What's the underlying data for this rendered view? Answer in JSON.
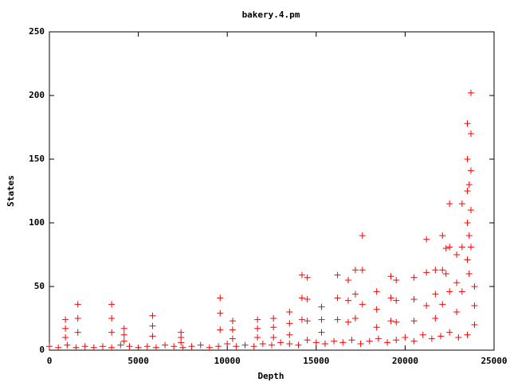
{
  "chart_data": {
    "type": "scatter",
    "title": "bakery.4.pm",
    "x_label": "Depth",
    "y_label": "States",
    "xlim": [
      0,
      25000
    ],
    "ylim": [
      0,
      250
    ],
    "xticks": [
      0,
      5000,
      10000,
      15000,
      20000,
      25000
    ],
    "yticks": [
      0,
      50,
      100,
      150,
      200,
      250
    ],
    "series": [
      {
        "color": "#ff0000",
        "x": [
          0,
          500,
          1000,
          1500,
          2000,
          2500,
          3000,
          3500,
          4000,
          4500,
          5000,
          5500,
          6000,
          6500,
          7000,
          7500,
          8000,
          8500,
          9000,
          9500,
          10000,
          10500,
          11000,
          11500,
          12000,
          12500,
          13000,
          13500,
          14000,
          14500,
          15000,
          15500,
          16000,
          16500,
          17000,
          17500,
          18000,
          18500,
          19000,
          19500,
          20000,
          20500,
          21000,
          21500,
          22000,
          22500,
          23000,
          23500,
          900,
          900,
          900,
          1600,
          1600,
          1600,
          3500,
          3500,
          3500,
          4200,
          4200,
          4200,
          5800,
          5800,
          5800,
          7400,
          7400,
          7400,
          9600,
          9600,
          9600,
          10300,
          10300,
          10300,
          11700,
          11700,
          11700,
          12600,
          12600,
          12600,
          13500,
          13500,
          13500,
          14200,
          14200,
          14200,
          14500,
          14500,
          14500,
          15300,
          15300,
          15300,
          16200,
          16200,
          16200,
          16800,
          16800,
          16800,
          17200,
          17200,
          17200,
          17600,
          17600,
          17600,
          18400,
          18400,
          18400,
          19200,
          19200,
          19200,
          19500,
          19500,
          19500,
          20500,
          20500,
          20500,
          21200,
          21200,
          21200,
          21700,
          21700,
          21700,
          22100,
          22100,
          22100,
          22500,
          22500,
          22500,
          22900,
          22900,
          22900,
          23200,
          23200,
          23200,
          23500,
          23500,
          23500,
          23700,
          23700,
          23700,
          23900,
          23900,
          23900,
          23500,
          23500,
          23700,
          23700,
          23600,
          23600,
          23600,
          22300,
          22300
        ],
        "values": [
          3,
          2,
          4,
          2,
          3,
          2,
          3,
          2,
          4,
          3,
          2,
          3,
          2,
          4,
          3,
          2,
          3,
          4,
          2,
          3,
          5,
          3,
          4,
          3,
          5,
          4,
          6,
          5,
          4,
          8,
          6,
          5,
          7,
          6,
          8,
          5,
          7,
          9,
          6,
          8,
          10,
          7,
          12,
          9,
          11,
          14,
          10,
          12,
          24,
          17,
          10,
          36,
          25,
          14,
          36,
          25,
          14,
          17,
          12,
          7,
          27,
          19,
          11,
          14,
          10,
          6,
          41,
          29,
          16,
          23,
          16,
          9,
          24,
          17,
          10,
          25,
          18,
          10,
          30,
          21,
          12,
          59,
          41,
          24,
          57,
          40,
          23,
          34,
          24,
          14,
          59,
          41,
          24,
          55,
          39,
          22,
          63,
          44,
          25,
          90,
          63,
          36,
          46,
          32,
          18,
          58,
          41,
          23,
          55,
          39,
          22,
          57,
          40,
          23,
          87,
          61,
          35,
          63,
          44,
          25,
          90,
          63,
          36,
          115,
          81,
          46,
          75,
          53,
          30,
          115,
          81,
          46,
          178,
          125,
          71,
          202,
          141,
          81,
          50,
          35,
          20,
          150,
          100,
          170,
          110,
          130,
          90,
          60,
          80,
          60
        ]
      }
    ]
  }
}
